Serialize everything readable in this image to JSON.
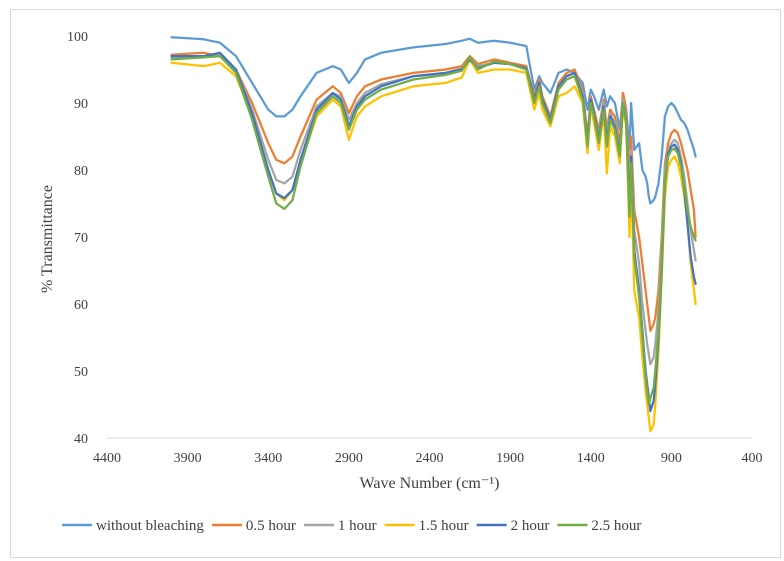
{
  "chart_data": {
    "type": "line",
    "title": "",
    "xlabel": "Wave Number (cm⁻¹)",
    "ylabel": "% Transmittance",
    "xlim": [
      4400,
      400
    ],
    "ylim": [
      40,
      100
    ],
    "x_reversed": true,
    "grid": false,
    "legend_position": "bottom",
    "x_ticks": [
      4400,
      3900,
      3400,
      2900,
      2400,
      1900,
      1400,
      900,
      400
    ],
    "y_ticks": [
      40,
      50,
      60,
      70,
      80,
      90,
      100
    ],
    "x": [
      4000,
      3800,
      3700,
      3600,
      3500,
      3400,
      3350,
      3300,
      3250,
      3200,
      3100,
      3000,
      2950,
      2900,
      2850,
      2800,
      2700,
      2500,
      2300,
      2200,
      2150,
      2100,
      2000,
      1900,
      1800,
      1750,
      1720,
      1700,
      1650,
      1600,
      1550,
      1500,
      1450,
      1420,
      1400,
      1380,
      1350,
      1320,
      1300,
      1280,
      1250,
      1220,
      1200,
      1180,
      1160,
      1150,
      1130,
      1100,
      1080,
      1060,
      1050,
      1040,
      1030,
      1010,
      1000,
      980,
      960,
      940,
      920,
      900,
      880,
      860,
      840,
      820,
      800,
      780,
      760,
      750
    ],
    "series": [
      {
        "name": "without bleaching",
        "color": "#5b9bd5",
        "values": [
          99.8,
          99.5,
          99.0,
          97.0,
          93.0,
          89.0,
          88.0,
          88.0,
          89.0,
          91.0,
          94.5,
          95.5,
          95.0,
          93.0,
          94.5,
          96.5,
          97.5,
          98.3,
          98.8,
          99.3,
          99.6,
          99.0,
          99.3,
          99.0,
          98.5,
          92.0,
          94.0,
          93.0,
          91.5,
          94.5,
          95.0,
          94.5,
          93.0,
          89.0,
          92.0,
          91.0,
          89.0,
          92.0,
          89.5,
          91.0,
          90.0,
          86.0,
          91.5,
          89.0,
          83.0,
          90.0,
          83.0,
          84.0,
          80.0,
          79.0,
          78.0,
          76.0,
          75.0,
          75.5,
          76.0,
          78.0,
          82.0,
          88.0,
          89.5,
          90.0,
          89.5,
          88.5,
          87.5,
          87.0,
          86.0,
          84.5,
          83.0,
          82.0
        ]
      },
      {
        "name": "0.5 hour",
        "color": "#ed7d31",
        "values": [
          97.2,
          97.5,
          97.0,
          95.0,
          90.0,
          84.0,
          81.5,
          81.0,
          82.0,
          85.0,
          90.5,
          92.5,
          91.5,
          88.5,
          91.0,
          92.5,
          93.5,
          94.5,
          95.0,
          95.5,
          97.0,
          95.8,
          96.5,
          96.0,
          95.5,
          91.0,
          93.5,
          91.0,
          88.0,
          93.0,
          94.5,
          95.0,
          92.0,
          85.0,
          91.0,
          89.0,
          86.0,
          90.5,
          86.0,
          89.0,
          88.0,
          84.0,
          91.5,
          89.0,
          78.0,
          85.0,
          74.0,
          70.0,
          66.0,
          62.0,
          60.0,
          58.0,
          56.0,
          57.0,
          58.0,
          62.0,
          70.0,
          81.0,
          84.0,
          85.5,
          86.0,
          85.5,
          84.0,
          82.0,
          80.0,
          77.0,
          74.0,
          70.0
        ]
      },
      {
        "name": "1 hour",
        "color": "#a5a5a5",
        "values": [
          96.8,
          97.0,
          97.0,
          95.0,
          89.0,
          81.5,
          78.5,
          78.0,
          79.0,
          83.0,
          89.5,
          91.5,
          91.0,
          87.5,
          90.0,
          91.5,
          92.8,
          94.0,
          94.5,
          95.2,
          96.5,
          95.5,
          96.0,
          95.8,
          95.2,
          90.5,
          93.0,
          90.5,
          87.5,
          92.5,
          94.0,
          94.5,
          91.5,
          84.0,
          90.5,
          88.5,
          85.0,
          90.0,
          85.0,
          88.5,
          87.0,
          83.0,
          90.5,
          88.0,
          76.0,
          83.0,
          71.0,
          66.0,
          60.0,
          56.0,
          54.0,
          52.5,
          51.0,
          52.0,
          54.0,
          59.0,
          68.0,
          80.0,
          83.0,
          84.0,
          84.5,
          84.0,
          82.0,
          79.0,
          75.0,
          71.0,
          68.0,
          66.5
        ]
      },
      {
        "name": "1.5 hour",
        "color": "#ffc000",
        "values": [
          96.0,
          95.5,
          96.0,
          94.0,
          88.0,
          80.0,
          76.5,
          75.5,
          77.0,
          81.0,
          88.0,
          90.5,
          89.5,
          84.5,
          88.0,
          89.5,
          91.0,
          92.5,
          93.0,
          93.8,
          96.5,
          94.5,
          95.0,
          95.0,
          94.5,
          89.0,
          91.5,
          89.0,
          86.5,
          91.0,
          91.5,
          92.5,
          90.0,
          82.5,
          89.5,
          87.0,
          83.0,
          88.5,
          79.5,
          86.5,
          85.0,
          81.0,
          89.5,
          86.5,
          70.0,
          79.0,
          62.0,
          58.0,
          52.0,
          47.0,
          45.0,
          43.0,
          41.0,
          42.0,
          45.0,
          53.0,
          64.0,
          76.0,
          80.5,
          81.5,
          82.0,
          81.0,
          79.0,
          76.0,
          72.0,
          66.0,
          62.0,
          60.0
        ]
      },
      {
        "name": "2 hour",
        "color": "#4472c4",
        "values": [
          97.0,
          97.0,
          97.5,
          95.0,
          88.5,
          80.0,
          76.5,
          75.8,
          77.0,
          81.5,
          89.0,
          91.5,
          90.5,
          86.5,
          89.5,
          91.0,
          92.5,
          94.0,
          94.5,
          95.0,
          96.5,
          95.2,
          96.0,
          95.8,
          95.2,
          90.5,
          93.0,
          90.5,
          87.5,
          92.5,
          94.0,
          94.5,
          91.0,
          84.0,
          90.5,
          88.5,
          84.5,
          89.5,
          84.0,
          88.0,
          86.5,
          82.5,
          90.0,
          87.5,
          74.0,
          82.0,
          68.0,
          62.0,
          56.0,
          50.0,
          48.0,
          46.0,
          44.0,
          45.5,
          48.0,
          55.0,
          65.0,
          78.0,
          82.5,
          83.5,
          83.8,
          83.0,
          81.0,
          77.0,
          72.0,
          67.0,
          64.0,
          63.0
        ]
      },
      {
        "name": "2.5 hour",
        "color": "#70ad47",
        "values": [
          96.5,
          96.8,
          97.0,
          94.5,
          87.5,
          79.0,
          75.0,
          74.2,
          75.5,
          80.5,
          88.5,
          91.0,
          90.0,
          86.0,
          89.0,
          90.5,
          92.0,
          93.5,
          94.2,
          94.8,
          96.8,
          95.0,
          96.2,
          95.8,
          95.0,
          90.0,
          92.5,
          90.0,
          87.0,
          92.0,
          93.5,
          94.0,
          90.5,
          83.5,
          90.0,
          88.0,
          84.0,
          89.0,
          83.5,
          87.5,
          86.0,
          82.0,
          90.0,
          87.0,
          73.0,
          81.0,
          67.0,
          61.0,
          55.0,
          49.0,
          47.0,
          45.0,
          46.0,
          47.5,
          50.0,
          56.0,
          66.0,
          78.5,
          82.0,
          83.0,
          83.2,
          82.5,
          80.5,
          77.5,
          74.0,
          71.5,
          70.0,
          69.5
        ]
      }
    ]
  }
}
